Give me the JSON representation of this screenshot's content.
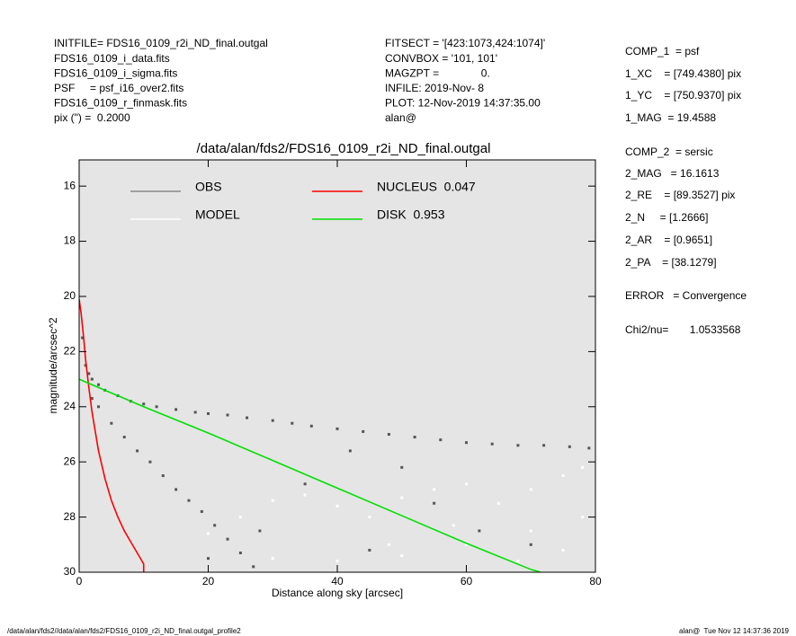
{
  "chart_data": {
    "type": "scatter",
    "title": "/data/alan/fds2/FDS16_0109_r2i_ND_final.outgal",
    "x_label": "Distance along sky [arcsec]",
    "y_label": "magnitude/arcsec^2",
    "xlim": [
      0,
      80
    ],
    "xticks": [
      0,
      20,
      40,
      60,
      80
    ],
    "ylim": [
      30,
      15.05
    ],
    "yticks": [
      16,
      18,
      20,
      22,
      24,
      26,
      28,
      30
    ],
    "series": [
      {
        "name": "OBS",
        "color": "#555555",
        "mode": "markers",
        "x": [
          1.5,
          2,
          3,
          4,
          6,
          8,
          10,
          12,
          15,
          18,
          20,
          23,
          26,
          30,
          33,
          36,
          40,
          44,
          48,
          52,
          56,
          60,
          64,
          68,
          72,
          76,
          79,
          42,
          50,
          55,
          62,
          70,
          35,
          28,
          20,
          45,
          0.5,
          1,
          2,
          3,
          5,
          7,
          9,
          11,
          13,
          15,
          17,
          19,
          21,
          23,
          25,
          27
        ],
        "values": [
          22.8,
          23.0,
          23.2,
          23.4,
          23.6,
          23.8,
          23.9,
          24.0,
          24.1,
          24.2,
          24.25,
          24.3,
          24.4,
          24.5,
          24.6,
          24.7,
          24.8,
          24.9,
          25.0,
          25.1,
          25.2,
          25.3,
          25.35,
          25.4,
          25.4,
          25.45,
          25.5,
          25.6,
          26.2,
          27.5,
          28.5,
          29.0,
          26.8,
          28.5,
          29.5,
          29.2,
          21.5,
          22.5,
          23.7,
          24.0,
          24.6,
          25.1,
          25.6,
          26.0,
          26.5,
          27.0,
          27.4,
          27.8,
          28.3,
          28.8,
          29.3,
          29.8
        ]
      },
      {
        "name": "MODEL",
        "color": "#ffffff",
        "mode": "markers",
        "x": [
          20,
          25,
          30,
          35,
          40,
          45,
          50,
          55,
          60,
          65,
          70,
          75,
          78,
          30,
          40,
          50,
          60,
          70,
          78,
          48,
          58,
          68,
          75
        ],
        "values": [
          28.6,
          28.0,
          27.4,
          27.2,
          27.6,
          28.0,
          27.3,
          27.0,
          26.8,
          27.5,
          27.0,
          26.5,
          26.2,
          29.5,
          29.6,
          29.4,
          29.0,
          28.5,
          28.0,
          29.0,
          28.3,
          29.6,
          29.2
        ]
      },
      {
        "name": "NUCLEUS  0.047",
        "color": "#ff0000",
        "mode": "lines",
        "x": [
          0,
          0.3,
          0.7,
          1,
          1.5,
          2,
          3,
          4,
          5,
          6,
          7,
          8,
          9,
          9.5,
          10,
          10
        ],
        "values": [
          20.1,
          20.6,
          21.5,
          22.3,
          23.3,
          24.2,
          25.6,
          26.6,
          27.4,
          28,
          28.5,
          28.9,
          29.3,
          29.5,
          29.7,
          30
        ]
      },
      {
        "name": "DISK  0.953",
        "color": "#00e000",
        "mode": "lines",
        "x": [
          0,
          10,
          20,
          30,
          40,
          50,
          60,
          70,
          71.5
        ],
        "values": [
          23.0,
          24.0,
          24.95,
          25.95,
          26.95,
          27.95,
          28.95,
          29.9,
          30.0
        ]
      }
    ],
    "annotations": {
      "left": [
        "INITFILE= FDS16_0109_r2i_ND_final.outgal",
        "FDS16_0109_i_data.fits",
        "FDS16_0109_i_sigma.fits",
        "PSF     = psf_i16_over2.fits",
        "FDS16_0109_r_finmask.fits",
        "pix (\") =  0.2000"
      ],
      "middle": [
        "FITSECT = '[423:1073,424:1074]'",
        "CONVBOX = '101, 101'",
        "MAGZPT =              0.",
        "INFILE: 2019-Nov- 8",
        "PLOT: 12-Nov-2019 14:37:35.00",
        "alan@"
      ],
      "right": [
        "COMP_1  = psf",
        "1_XC    = [749.4380] pix",
        "1_YC    = [750.9370] pix",
        "1_MAG  = 19.4588",
        "COMP_2  = sersic",
        "2_MAG   = 16.1613",
        "2_RE    = [89.3527] pix",
        "2_N     = [1.2666]",
        "2_AR    = [0.9651]",
        "2_PA    = [38.1279]",
        "ERROR   = Convergence",
        "Chi2/nu=       1.0533568"
      ],
      "footer_left": "/data/alan/fds2//data/alan/fds2/FDS16_0109_r2i_ND_final.outgal_profile2",
      "footer_right": "alan@  Tue Nov 12 14:37:36 2019"
    }
  }
}
